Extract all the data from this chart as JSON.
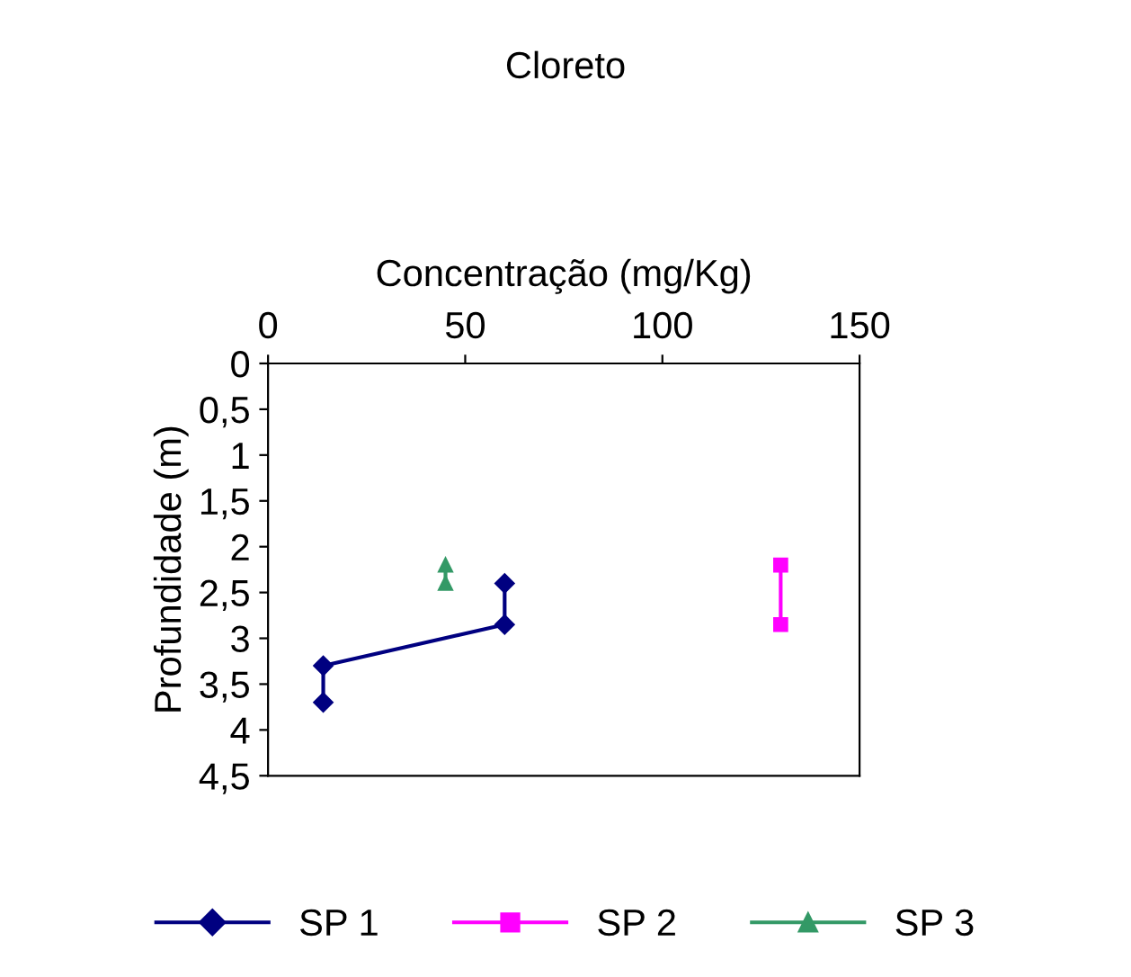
{
  "chart_data": {
    "type": "line",
    "title": "Cloreto",
    "xlabel": "Concentração (mg/Kg)",
    "ylabel": "Profundidade (m)",
    "xlim": [
      0,
      150
    ],
    "xticks": [
      0,
      50,
      100,
      150
    ],
    "ylim": [
      4.5,
      0
    ],
    "yticks": [
      0,
      {
        "value": 0.5,
        "label": "0,5"
      },
      1,
      {
        "value": 1.5,
        "label": "1,5"
      },
      2,
      {
        "value": 2.5,
        "label": "2,5"
      },
      3,
      {
        "value": 3.5,
        "label": "3,5"
      },
      4,
      {
        "value": 4.5,
        "label": "4,5"
      }
    ],
    "grid": false,
    "legend": "bottom",
    "line_style": "solid",
    "series": [
      {
        "name": "SP 1",
        "color": "#000080",
        "marker": "diamond",
        "x": [
          60,
          60,
          14,
          14
        ],
        "values": [
          2.4,
          2.85,
          3.3,
          3.7
        ]
      },
      {
        "name": "SP 2",
        "color": "#ff00ff",
        "marker": "square",
        "x": [
          130,
          130
        ],
        "values": [
          2.2,
          2.85
        ]
      },
      {
        "name": "SP 3",
        "color": "#339966",
        "marker": "triangle",
        "x": [
          45,
          45
        ],
        "values": [
          2.2,
          2.4
        ]
      }
    ]
  }
}
